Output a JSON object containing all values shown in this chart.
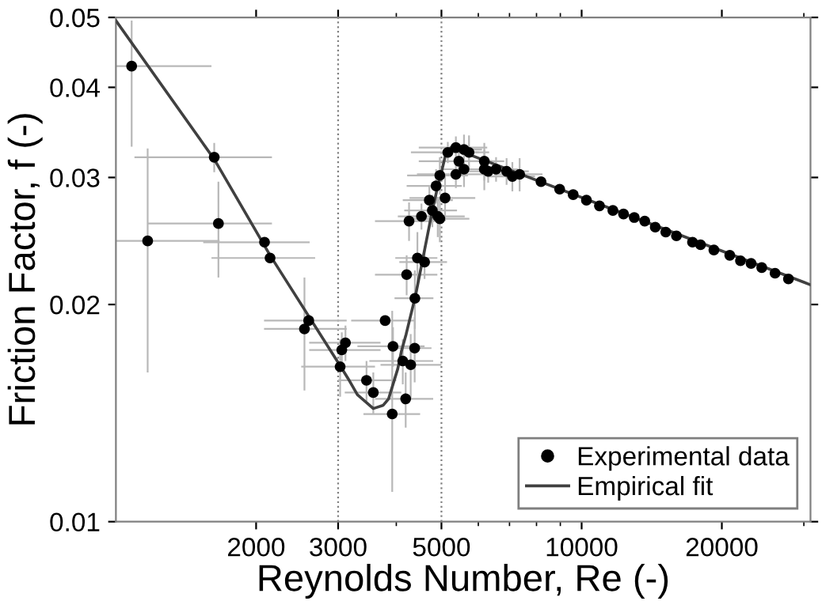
{
  "chart_data": {
    "type": "scatter",
    "xlabel": "Reynolds Number, Re (-)",
    "ylabel": "Friction Factor, f (-)",
    "log": "xy",
    "xlim": [
      1000,
      31000
    ],
    "ylim": [
      0.01,
      0.05
    ],
    "xticks": [
      2000,
      3000,
      5000,
      10000,
      20000
    ],
    "yticks": [
      0.01,
      0.02,
      0.03,
      0.04,
      0.05
    ],
    "grid": false,
    "legend": "bottom right",
    "ref_lines": [
      {
        "axis": "x",
        "value": 3000,
        "color": "#808080",
        "line_style": "dotted"
      },
      {
        "axis": "x",
        "value": 5000,
        "color": "#808080",
        "line_style": "dotted"
      }
    ],
    "series": [
      {
        "name": "Experimental data",
        "marker": "circle",
        "color": "#000000",
        "x": [
          1081,
          1170,
          1626,
          1660,
          2085,
          2143,
          2540,
          2594,
          3030,
          3055,
          3111,
          3452,
          3570,
          3785,
          3920,
          3935,
          4130,
          4190,
          4210,
          4260,
          4295,
          4380,
          4385,
          4440,
          4530,
          4600,
          4710,
          4780,
          4870,
          4910,
          4960,
          4960,
          5090,
          5160,
          5370,
          5370,
          5450,
          5590,
          5590,
          5730,
          6180,
          6180,
          6300,
          6550,
          6900,
          7100,
          7360,
          8180,
          8970,
          9590,
          10240,
          10920,
          11670,
          12300,
          12970,
          13660,
          14390,
          15160,
          15980,
          17300,
          18000,
          19230,
          20800,
          21930,
          23110,
          24360,
          26020,
          27800
        ],
        "values": [
          0.0428,
          0.0245,
          0.032,
          0.0259,
          0.0244,
          0.0232,
          0.0185,
          0.019,
          0.0164,
          0.0173,
          0.0177,
          0.0157,
          0.0151,
          0.019,
          0.0141,
          0.0175,
          0.0167,
          0.0148,
          0.022,
          0.0261,
          0.0165,
          0.0174,
          0.0204,
          0.0232,
          0.0265,
          0.0229,
          0.0279,
          0.027,
          0.0292,
          0.0265,
          0.0302,
          0.0263,
          0.0281,
          0.0325,
          0.033,
          0.0303,
          0.0316,
          0.0328,
          0.0308,
          0.0325,
          0.0316,
          0.0308,
          0.0306,
          0.0308,
          0.0306,
          0.0301,
          0.0303,
          0.0296,
          0.0289,
          0.0284,
          0.0279,
          0.0274,
          0.027,
          0.0267,
          0.0264,
          0.0261,
          0.0256,
          0.0252,
          0.0249,
          0.0244,
          0.0242,
          0.0238,
          0.0234,
          0.023,
          0.0228,
          0.0225,
          0.0221,
          0.0217
        ],
        "xerrors": [
          [
            1000,
            1604
          ],
          [
            1000,
            1670
          ],
          [
            1096,
            2163
          ],
          [
            1170,
            2163
          ],
          [
            1540,
            2606
          ],
          [
            1604,
            2678
          ],
          [
            2080,
            3130
          ],
          [
            2080,
            3130
          ],
          [
            2500,
            3600
          ],
          [
            2600,
            3700
          ],
          [
            2600,
            3700
          ],
          [
            3000,
            4000
          ],
          [
            3100,
            4100
          ],
          [
            3200,
            4400
          ],
          [
            3400,
            4500
          ],
          [
            3300,
            4600
          ],
          [
            3500,
            4800
          ],
          [
            3600,
            4800
          ],
          [
            3600,
            4900
          ],
          [
            3600,
            4900
          ],
          [
            3700,
            5000
          ],
          380,
          420,
          460,
          500,
          540,
          580,
          620,
          660,
          700,
          740,
          780,
          820,
          860,
          900,
          940,
          980,
          520,
          560,
          600,
          640,
          680,
          720,
          760,
          800,
          840,
          880,
          null,
          null,
          null,
          null,
          null,
          null,
          null,
          null,
          null,
          null,
          null,
          null,
          null,
          null,
          null,
          null,
          null,
          null,
          null,
          null,
          null
        ],
        "errors": [
          [
            0.0331,
            0.0495
          ],
          [
            0.0161,
            0.0329
          ],
          0.0015,
          [
            0.0218,
            0.0296
          ],
          null,
          null,
          [
            0.0152,
            0.0218
          ],
          null,
          0.0015,
          0.001,
          0.001,
          0.001,
          0.001,
          null,
          [
            0.011,
            0.0196
          ],
          0.0011,
          0.0012,
          0.0013,
          0.0014,
          0.0016,
          0.0017,
          0.0018,
          0.0019,
          0.002,
          0.0011,
          0.0012,
          0.0013,
          0.0014,
          0.0016,
          0.0017,
          0.0018,
          0.0019,
          0.002,
          0.0011,
          0.0012,
          0.0013,
          0.0014,
          0.0016,
          0.0017,
          0.0018,
          0.0019,
          0.002,
          0.0011,
          0.0012,
          0.0013,
          0.0014,
          0.0016,
          null,
          null,
          null,
          null,
          null,
          null,
          null,
          null,
          null,
          null,
          null,
          null,
          null,
          null,
          null,
          null,
          null,
          null,
          null,
          null,
          null
        ]
      },
      {
        "name": "Empirical fit",
        "type": "line",
        "line_style": "solid",
        "marker": "none",
        "color": "#404040",
        "x": [
          1000,
          1626,
          2143,
          3010,
          3150,
          3300,
          3570,
          3750,
          3850,
          4030,
          4100,
          4200,
          4400,
          4600,
          4780,
          4900,
          5000,
          5100,
          5240,
          31000
        ],
        "values": [
          0.0495,
          0.0318,
          0.0234,
          0.01656,
          0.0158,
          0.015,
          0.01435,
          0.0145,
          0.0148,
          0.0163,
          0.0172,
          0.0182,
          0.0206,
          0.0238,
          0.027,
          0.029,
          0.0305,
          0.0322,
          0.033,
          0.0213
        ]
      }
    ]
  }
}
